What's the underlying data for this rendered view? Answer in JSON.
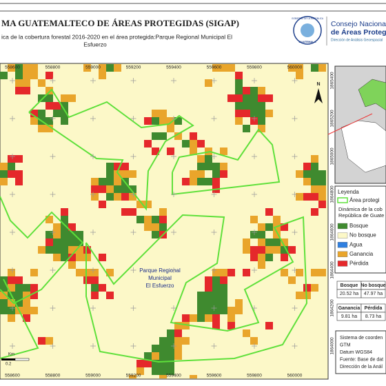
{
  "header": {
    "title": "MA GUATEMALTECO DE ÁREAS PROTEGIDAS  (SIGAP)",
    "subtitle": [
      "ica de la cobertura forestal 2016-2020 en el área protegida:Parque Regional Municipal El",
      "Esfuerzo"
    ],
    "logo": {
      "seal_top": "GOBIERNO DE LA REPÚBLICA",
      "seal_bottom": "GUATEMALA",
      "line1": "Consejo Nacional",
      "line2": "de Áreas Protegi",
      "line3": "Dirección de Análisis Geoespacial"
    }
  },
  "map": {
    "x_ticks": [
      "558600",
      "558800",
      "559000",
      "559200",
      "559400",
      "559600",
      "559800",
      "560000"
    ],
    "y_ticks": [
      "1865400",
      "1865200",
      "1865000",
      "1864800",
      "1864600",
      "1864400",
      "1864200",
      "1864000"
    ],
    "area_label": [
      "Parque Regional",
      "Municipal",
      "El Esfuerzo"
    ],
    "north": "N",
    "scale": {
      "unit": "Km",
      "value": "0.2"
    }
  },
  "legend": {
    "title": "Leyenda",
    "boundary": "Área protegi",
    "dynamics_title": [
      "Dinámica de la cob",
      "República de Guate"
    ],
    "classes": [
      {
        "name": "Bosque",
        "color": "#3f8a2f"
      },
      {
        "name": "No bosque",
        "color": "#fcf8c8"
      },
      {
        "name": "Agua",
        "color": "#2f7fe0"
      },
      {
        "name": "Ganancia",
        "color": "#e9a52b"
      },
      {
        "name": "Pérdida",
        "color": "#e5282b"
      }
    ]
  },
  "tables": [
    {
      "headers": [
        "Bosque",
        "No bosque"
      ],
      "values": [
        "20.52 ha",
        "47.97 ha"
      ]
    },
    {
      "headers": [
        "Ganancia",
        "Pérdida"
      ],
      "values": [
        "9.81 ha",
        "8.73 ha"
      ]
    }
  ],
  "notes": [
    "Sistema de coorden",
    "GTM",
    "Datum WGS84",
    "Fuente: Base de dat",
    "Dirección de la Anál"
  ]
}
